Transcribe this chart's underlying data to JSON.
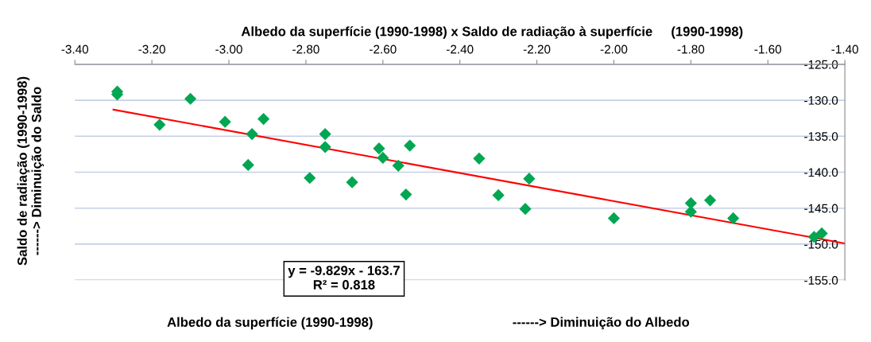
{
  "chart_data": {
    "type": "scatter",
    "title": "Albedo da superfície (1990-1998) x Saldo de radiação à superfície     (1990-1998)",
    "xlabel": "Albedo da superfície (1990-1998)",
    "ylabel": "Saldo de radiação (1990-1998)\n------> Diminuição do Saldo",
    "annotations": [
      "------> Diminuição do Albedo",
      "y = -9.829x - 163.7\nR² = 0.818"
    ],
    "x": [
      -3.29,
      -3.29,
      -3.18,
      -3.1,
      -3.01,
      -2.94,
      -2.91,
      -2.95,
      -2.75,
      -2.75,
      -2.79,
      -2.68,
      -2.61,
      -2.6,
      -2.56,
      -2.53,
      -2.54,
      -2.35,
      -2.3,
      -2.22,
      -2.23,
      -2.0,
      -1.8,
      -1.8,
      -1.75,
      -1.69,
      -1.48,
      -1.46
    ],
    "series": [
      {
        "color": "#00a651",
        "marker": "diamond",
        "values": [
          -128.8,
          -129.2,
          -133.4,
          -129.8,
          -133.0,
          -134.7,
          -132.6,
          -139.0,
          -134.7,
          -136.5,
          -140.8,
          -141.4,
          -136.7,
          -138.0,
          -139.1,
          -136.3,
          -143.1,
          -138.1,
          -143.2,
          -140.9,
          -145.1,
          -146.4,
          -144.3,
          -145.5,
          -143.9,
          -146.4,
          -149.0,
          -148.5
        ]
      },
      {
        "type": "line",
        "color": "#ff0000",
        "marker": "none",
        "line_style": "solid",
        "x": [
          -3.3,
          -1.4
        ],
        "values": [
          -131.3,
          -149.9
        ]
      }
    ],
    "xlim": [
      -3.4,
      -1.4
    ],
    "xticks": [
      {
        "value": -3.4,
        "label": "-3.40"
      },
      {
        "value": -3.2,
        "label": "-3.20"
      },
      {
        "value": -3.0,
        "label": "-3.00"
      },
      {
        "value": -2.8,
        "label": "-2.80"
      },
      {
        "value": -2.6,
        "label": "-2.60"
      },
      {
        "value": -2.4,
        "label": "-2.40"
      },
      {
        "value": -2.2,
        "label": "-2.20"
      },
      {
        "value": -2.0,
        "label": "-2.00"
      },
      {
        "value": -1.8,
        "label": "-1.80"
      },
      {
        "value": -1.6,
        "label": "-1.60"
      },
      {
        "value": -1.4,
        "label": "-1.40"
      }
    ],
    "ylim": [
      -155,
      -125
    ],
    "yticks": [
      {
        "value": -155,
        "label": "-155.0"
      },
      {
        "value": -150,
        "label": "-150.0"
      },
      {
        "value": -145,
        "label": "-145.0"
      },
      {
        "value": -140,
        "label": "-140.0"
      },
      {
        "value": -135,
        "label": "-135.0"
      },
      {
        "value": -130,
        "label": "-130.0"
      },
      {
        "value": -125,
        "label": "-125.0"
      }
    ],
    "grid": "y"
  }
}
